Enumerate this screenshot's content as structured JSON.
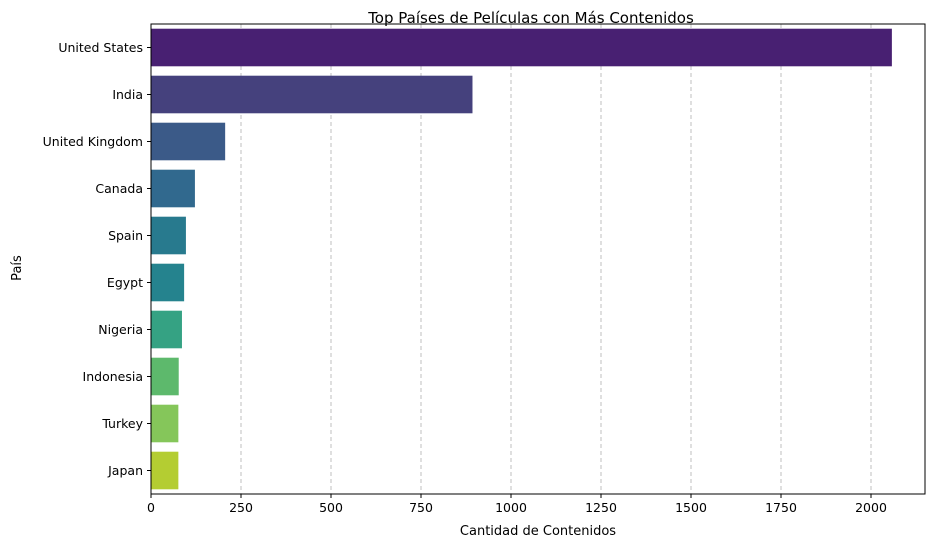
{
  "chart_data": {
    "type": "bar",
    "orientation": "horizontal",
    "title": "Top Países de Películas con Más Contenidos",
    "xlabel": "Cantidad de Contenidos",
    "ylabel": "País",
    "categories": [
      "United States",
      "India",
      "United Kingdom",
      "Canada",
      "Spain",
      "Egypt",
      "Nigeria",
      "Indonesia",
      "Turkey",
      "Japan"
    ],
    "values": [
      2058,
      893,
      206,
      122,
      97,
      92,
      86,
      77,
      76,
      76
    ],
    "xlim": [
      0,
      2150
    ],
    "xticks": [
      0,
      250,
      500,
      750,
      1000,
      1250,
      1500,
      1750,
      2000
    ],
    "grid": "x-axis dashed",
    "colors": [
      "#482072",
      "#45417d",
      "#3b5a88",
      "#31698e",
      "#287a8e",
      "#25838e",
      "#35a283",
      "#5db96c",
      "#85c65a",
      "#b4cd32"
    ]
  }
}
